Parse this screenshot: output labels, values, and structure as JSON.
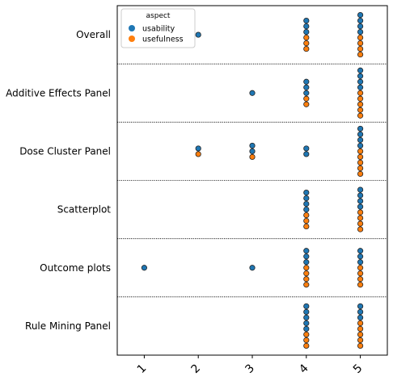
{
  "colors": {
    "usability": "#1f77b4",
    "usefulness": "#ff7f0e",
    "axis": "#000000",
    "separator": "#000000",
    "legend_border": "#cccccc"
  },
  "chart_data": {
    "type": "scatter",
    "subtype": "categorical swarm (strip) plot",
    "xlim": [
      0.5,
      5.5
    ],
    "x_ticks": [
      "1",
      "2",
      "3",
      "4",
      "5"
    ],
    "x_tick_rotation": 45,
    "grid": false,
    "separators": "dotted horizontal lines between categories",
    "legend": {
      "title": "aspect",
      "placement": "upper-left",
      "entries": [
        {
          "label": "usability",
          "color_key": "usability"
        },
        {
          "label": "usefulness",
          "color_key": "usefulness"
        }
      ]
    },
    "categories": [
      {
        "label": "Overall",
        "usability": {
          "1": 0,
          "2": 1,
          "3": 0,
          "4": 3,
          "5": 4
        },
        "usefulness": {
          "1": 0,
          "2": 0,
          "3": 0,
          "4": 3,
          "5": 4
        }
      },
      {
        "label": "Additive Effects Panel",
        "usability": {
          "1": 0,
          "2": 0,
          "3": 1,
          "4": 3,
          "5": 4
        },
        "usefulness": {
          "1": 0,
          "2": 0,
          "3": 0,
          "4": 2,
          "5": 5
        }
      },
      {
        "label": "Dose Cluster Panel",
        "usability": {
          "1": 0,
          "2": 1,
          "3": 2,
          "4": 2,
          "5": 4
        },
        "usefulness": {
          "1": 0,
          "2": 1,
          "3": 1,
          "4": 0,
          "5": 5
        }
      },
      {
        "label": "Scatterplot",
        "usability": {
          "1": 0,
          "2": 0,
          "3": 0,
          "4": 4,
          "5": 4
        },
        "usefulness": {
          "1": 0,
          "2": 0,
          "3": 0,
          "4": 3,
          "5": 4
        }
      },
      {
        "label": "Outcome plots",
        "usability": {
          "1": 1,
          "2": 0,
          "3": 1,
          "4": 3,
          "5": 3
        },
        "usefulness": {
          "1": 0,
          "2": 0,
          "3": 0,
          "4": 4,
          "5": 4
        }
      },
      {
        "label": "Rule Mining Panel",
        "usability": {
          "1": 0,
          "2": 0,
          "3": 0,
          "4": 5,
          "5": 3
        },
        "usefulness": {
          "1": 0,
          "2": 0,
          "3": 0,
          "4": 3,
          "5": 5
        }
      }
    ]
  }
}
